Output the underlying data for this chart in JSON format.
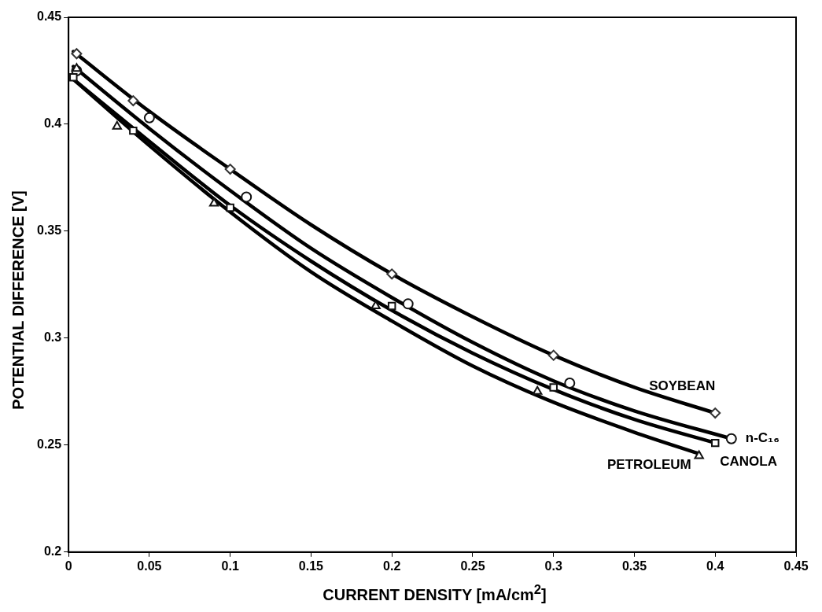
{
  "chart_data": {
    "type": "scatter",
    "xlabel": "CURRENT DENSITY [mA/cm$^{2}$]",
    "ylabel": "POTENTIAL DIFFERENCE [V]",
    "xlim": [
      0,
      0.45
    ],
    "ylim": [
      0.2,
      0.45
    ],
    "xticks": [
      0,
      0.05,
      0.1,
      0.15,
      0.2,
      0.25,
      0.3,
      0.35,
      0.4,
      0.45
    ],
    "yticks": [
      0.2,
      0.25,
      0.3,
      0.35,
      0.4,
      0.45
    ],
    "grid": false,
    "legend": false,
    "series": [
      {
        "name": "SOYBEAN",
        "marker": "diamond",
        "color": "#333333",
        "x": [
          0.005,
          0.04,
          0.1,
          0.2,
          0.3,
          0.4
        ],
        "values": [
          0.433,
          0.411,
          0.379,
          0.33,
          0.292,
          0.265
        ]
      },
      {
        "name": "n-C₁₆",
        "marker": "circle",
        "color": "#111111",
        "x": [
          0.005,
          0.05,
          0.11,
          0.21,
          0.31,
          0.41
        ],
        "values": [
          0.425,
          0.403,
          0.366,
          0.316,
          0.279,
          0.253
        ]
      },
      {
        "name": "CANOLA",
        "marker": "square",
        "color": "#111111",
        "x": [
          0.003,
          0.04,
          0.1,
          0.2,
          0.3,
          0.4
        ],
        "values": [
          0.422,
          0.397,
          0.361,
          0.315,
          0.277,
          0.251
        ]
      },
      {
        "name": "PETROLEUM",
        "marker": "triangle",
        "color": "#111111",
        "x": [
          0.005,
          0.03,
          0.09,
          0.19,
          0.29,
          0.39
        ],
        "values": [
          0.426,
          0.399,
          0.363,
          0.315,
          0.275,
          0.245
        ]
      },
      {
        "type": "line",
        "color": "#000000",
        "x": [
          0.003,
          0.05,
          0.1,
          0.15,
          0.2,
          0.25,
          0.3,
          0.35,
          0.4
        ],
        "values": [
          0.434,
          0.406,
          0.379,
          0.353,
          0.33,
          0.31,
          0.292,
          0.277,
          0.265
        ]
      },
      {
        "type": "line",
        "color": "#000000",
        "x": [
          0.003,
          0.05,
          0.1,
          0.15,
          0.2,
          0.25,
          0.3,
          0.35,
          0.41
        ],
        "values": [
          0.427,
          0.398,
          0.369,
          0.342,
          0.319,
          0.298,
          0.28,
          0.266,
          0.253
        ]
      },
      {
        "type": "line",
        "color": "#000000",
        "x": [
          0.003,
          0.05,
          0.1,
          0.15,
          0.2,
          0.25,
          0.3,
          0.35,
          0.4
        ],
        "values": [
          0.421,
          0.392,
          0.362,
          0.336,
          0.313,
          0.293,
          0.276,
          0.262,
          0.251
        ]
      },
      {
        "type": "line",
        "color": "#000000",
        "x": [
          0.003,
          0.05,
          0.1,
          0.15,
          0.2,
          0.25,
          0.3,
          0.35,
          0.39
        ],
        "values": [
          0.421,
          0.39,
          0.359,
          0.331,
          0.308,
          0.287,
          0.27,
          0.256,
          0.246
        ]
      }
    ]
  }
}
